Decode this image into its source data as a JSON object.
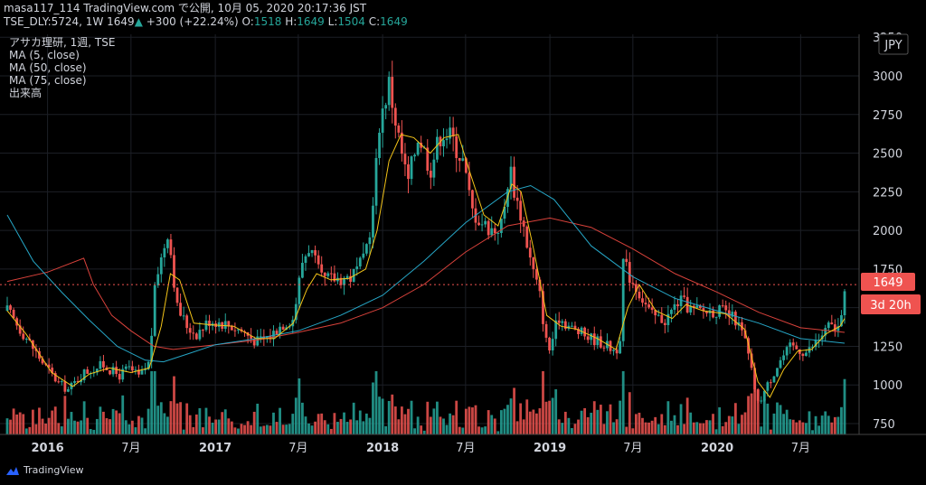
{
  "header": {
    "line1": "masa117_114 TradingView.com で公開, 10月 05, 2020 20:17:36 JST",
    "symbol": "TSE_DLY:5724, 1W",
    "last": "1649",
    "change_arrow": "▲",
    "change": "+300 (+22.24%)",
    "o_label": "O:",
    "o": "1518",
    "h_label": "H:",
    "h": "1649",
    "l_label": "L:",
    "l": "1504",
    "c_label": "C:",
    "c": "1649"
  },
  "legend": [
    "アサカ理研, 1週, TSE",
    "MA (5, close)",
    "MA (50, close)",
    "MA (75, close)",
    "出来高"
  ],
  "badges": {
    "currency": "JPY",
    "price": "1649",
    "countdown": "3d 20h"
  },
  "brand": "TradingView",
  "colors": {
    "up": "#26a69a",
    "down": "#ef5350",
    "ma5": "#f5c518",
    "ma50": "#26a6c6",
    "ma75": "#d9423b",
    "price_badge": "#ef5350"
  },
  "chart_data": {
    "type": "candlestick",
    "y_ticks": [
      750,
      1000,
      1250,
      1500,
      1750,
      2000,
      2250,
      2500,
      2750,
      3000,
      3250
    ],
    "x_ticks": [
      {
        "label": "2016",
        "date": "2016-01-01",
        "bold": true
      },
      {
        "label": "7月",
        "date": "2016-07-01",
        "bold": false
      },
      {
        "label": "2017",
        "date": "2017-01-01",
        "bold": true
      },
      {
        "label": "7月",
        "date": "2017-07-01",
        "bold": false
      },
      {
        "label": "2018",
        "date": "2018-01-01",
        "bold": true
      },
      {
        "label": "7月",
        "date": "2018-07-01",
        "bold": false
      },
      {
        "label": "2019",
        "date": "2019-01-01",
        "bold": true
      },
      {
        "label": "7月",
        "date": "2019-07-01",
        "bold": false
      },
      {
        "label": "2020",
        "date": "2020-01-01",
        "bold": true
      },
      {
        "label": "7月",
        "date": "2020-07-01",
        "bold": false
      }
    ],
    "close_path": [
      [
        "2015-10-05",
        1480
      ],
      [
        "2015-11-15",
        1310
      ],
      [
        "2015-12-20",
        1150
      ],
      [
        "2016-01-25",
        1010
      ],
      [
        "2016-02-15",
        970
      ],
      [
        "2016-03-20",
        1080
      ],
      [
        "2016-05-01",
        1130
      ],
      [
        "2016-06-05",
        1060
      ],
      [
        "2016-06-25",
        1110
      ],
      [
        "2016-07-20",
        1050
      ],
      [
        "2016-08-10",
        1150
      ],
      [
        "2016-08-25",
        1710
      ],
      [
        "2016-09-05",
        1820
      ],
      [
        "2016-09-20",
        2010
      ],
      [
        "2016-10-10",
        1500
      ],
      [
        "2016-11-01",
        1380
      ],
      [
        "2016-11-20",
        1330
      ],
      [
        "2016-12-20",
        1420
      ],
      [
        "2017-01-20",
        1400
      ],
      [
        "2017-03-01",
        1350
      ],
      [
        "2017-04-01",
        1280
      ],
      [
        "2017-05-01",
        1320
      ],
      [
        "2017-05-25",
        1390
      ],
      [
        "2017-06-20",
        1430
      ],
      [
        "2017-07-10",
        1800
      ],
      [
        "2017-07-25",
        1900
      ],
      [
        "2017-08-20",
        1680
      ],
      [
        "2017-09-25",
        1690
      ],
      [
        "2017-10-25",
        1700
      ],
      [
        "2017-11-20",
        1800
      ],
      [
        "2017-12-10",
        2100
      ],
      [
        "2017-12-25",
        2700
      ],
      [
        "2018-01-15",
        2950
      ],
      [
        "2018-02-05",
        2600
      ],
      [
        "2018-02-25",
        2300
      ],
      [
        "2018-03-20",
        2630
      ],
      [
        "2018-04-15",
        2400
      ],
      [
        "2018-05-10",
        2650
      ],
      [
        "2018-06-01",
        2600
      ],
      [
        "2018-06-25",
        2450
      ],
      [
        "2018-07-15",
        2130
      ],
      [
        "2018-08-10",
        2040
      ],
      [
        "2018-09-01",
        2000
      ],
      [
        "2018-09-20",
        2050
      ],
      [
        "2018-10-05",
        2420
      ],
      [
        "2018-10-20",
        2200
      ],
      [
        "2018-11-01",
        2080
      ],
      [
        "2018-11-20",
        1800
      ],
      [
        "2018-12-10",
        1580
      ],
      [
        "2018-12-28",
        1200
      ],
      [
        "2019-01-20",
        1440
      ],
      [
        "2019-02-20",
        1360
      ],
      [
        "2019-03-20",
        1320
      ],
      [
        "2019-04-20",
        1280
      ],
      [
        "2019-05-20",
        1230
      ],
      [
        "2019-06-05",
        1250
      ],
      [
        "2019-06-10",
        1800
      ],
      [
        "2019-06-25",
        1700
      ],
      [
        "2019-07-15",
        1600
      ],
      [
        "2019-08-10",
        1450
      ],
      [
        "2019-09-10",
        1420
      ],
      [
        "2019-10-10",
        1550
      ],
      [
        "2019-11-10",
        1480
      ],
      [
        "2019-12-10",
        1480
      ],
      [
        "2020-01-10",
        1480
      ],
      [
        "2020-02-10",
        1420
      ],
      [
        "2020-03-01",
        1300
      ],
      [
        "2020-03-15",
        1100
      ],
      [
        "2020-03-30",
        880
      ],
      [
        "2020-04-20",
        1000
      ],
      [
        "2020-05-15",
        1150
      ],
      [
        "2020-06-10",
        1250
      ],
      [
        "2020-07-15",
        1210
      ],
      [
        "2020-08-10",
        1300
      ],
      [
        "2020-09-01",
        1380
      ],
      [
        "2020-09-20",
        1360
      ],
      [
        "2020-09-28",
        1410
      ],
      [
        "2020-10-05",
        1649
      ]
    ],
    "ma5": [
      [
        "2015-10-05",
        1480
      ],
      [
        "2015-11-15",
        1330
      ],
      [
        "2016-01-10",
        1080
      ],
      [
        "2016-02-25",
        990
      ],
      [
        "2016-04-01",
        1070
      ],
      [
        "2016-05-15",
        1110
      ],
      [
        "2016-07-01",
        1080
      ],
      [
        "2016-08-10",
        1110
      ],
      [
        "2016-09-05",
        1380
      ],
      [
        "2016-09-25",
        1720
      ],
      [
        "2016-10-15",
        1680
      ],
      [
        "2016-11-15",
        1400
      ],
      [
        "2016-12-20",
        1390
      ],
      [
        "2017-02-10",
        1380
      ],
      [
        "2017-04-01",
        1300
      ],
      [
        "2017-05-10",
        1300
      ],
      [
        "2017-06-20",
        1400
      ],
      [
        "2017-07-20",
        1620
      ],
      [
        "2017-08-10",
        1720
      ],
      [
        "2017-09-10",
        1680
      ],
      [
        "2017-10-20",
        1690
      ],
      [
        "2017-11-25",
        1750
      ],
      [
        "2017-12-20",
        2000
      ],
      [
        "2018-01-15",
        2450
      ],
      [
        "2018-02-10",
        2620
      ],
      [
        "2018-03-10",
        2600
      ],
      [
        "2018-04-15",
        2500
      ],
      [
        "2018-05-15",
        2600
      ],
      [
        "2018-06-15",
        2620
      ],
      [
        "2018-07-10",
        2380
      ],
      [
        "2018-08-10",
        2100
      ],
      [
        "2018-09-10",
        2030
      ],
      [
        "2018-10-10",
        2300
      ],
      [
        "2018-10-30",
        2250
      ],
      [
        "2018-11-25",
        1900
      ],
      [
        "2018-12-25",
        1450
      ],
      [
        "2019-01-25",
        1380
      ],
      [
        "2019-03-01",
        1360
      ],
      [
        "2019-04-15",
        1300
      ],
      [
        "2019-05-25",
        1230
      ],
      [
        "2019-06-20",
        1500
      ],
      [
        "2019-07-15",
        1650
      ],
      [
        "2019-08-20",
        1480
      ],
      [
        "2019-09-25",
        1430
      ],
      [
        "2019-10-25",
        1520
      ],
      [
        "2019-12-01",
        1480
      ],
      [
        "2020-01-20",
        1460
      ],
      [
        "2020-03-01",
        1360
      ],
      [
        "2020-03-30",
        1020
      ],
      [
        "2020-04-25",
        920
      ],
      [
        "2020-05-25",
        1100
      ],
      [
        "2020-06-25",
        1220
      ],
      [
        "2020-07-25",
        1230
      ],
      [
        "2020-08-25",
        1330
      ],
      [
        "2020-09-25",
        1380
      ],
      [
        "2020-10-05",
        1430
      ]
    ],
    "ma50": [
      [
        "2015-10-05",
        2100
      ],
      [
        "2015-12-01",
        1800
      ],
      [
        "2016-02-01",
        1600
      ],
      [
        "2016-04-01",
        1420
      ],
      [
        "2016-06-01",
        1250
      ],
      [
        "2016-08-01",
        1160
      ],
      [
        "2016-09-10",
        1150
      ],
      [
        "2016-11-01",
        1200
      ],
      [
        "2017-01-01",
        1260
      ],
      [
        "2017-04-01",
        1300
      ],
      [
        "2017-07-01",
        1350
      ],
      [
        "2017-10-01",
        1450
      ],
      [
        "2018-01-01",
        1580
      ],
      [
        "2018-04-01",
        1800
      ],
      [
        "2018-07-01",
        2050
      ],
      [
        "2018-10-01",
        2250
      ],
      [
        "2018-11-20",
        2290
      ],
      [
        "2019-01-10",
        2200
      ],
      [
        "2019-04-01",
        1900
      ],
      [
        "2019-07-01",
        1700
      ],
      [
        "2019-10-01",
        1560
      ],
      [
        "2020-01-01",
        1480
      ],
      [
        "2020-04-01",
        1400
      ],
      [
        "2020-07-01",
        1300
      ],
      [
        "2020-10-05",
        1270
      ]
    ],
    "ma75": [
      [
        "2015-10-05",
        1670
      ],
      [
        "2016-01-01",
        1730
      ],
      [
        "2016-03-20",
        1820
      ],
      [
        "2016-04-10",
        1650
      ],
      [
        "2016-05-20",
        1450
      ],
      [
        "2016-07-01",
        1350
      ],
      [
        "2016-08-20",
        1250
      ],
      [
        "2016-10-01",
        1230
      ],
      [
        "2017-01-01",
        1260
      ],
      [
        "2017-04-01",
        1290
      ],
      [
        "2017-07-01",
        1340
      ],
      [
        "2017-10-01",
        1400
      ],
      [
        "2018-01-01",
        1500
      ],
      [
        "2018-04-01",
        1650
      ],
      [
        "2018-07-01",
        1860
      ],
      [
        "2018-10-01",
        2030
      ],
      [
        "2019-01-01",
        2080
      ],
      [
        "2019-04-01",
        2020
      ],
      [
        "2019-07-01",
        1880
      ],
      [
        "2019-10-01",
        1720
      ],
      [
        "2020-01-01",
        1600
      ],
      [
        "2020-04-01",
        1470
      ],
      [
        "2020-07-01",
        1370
      ],
      [
        "2020-10-05",
        1340
      ]
    ]
  }
}
